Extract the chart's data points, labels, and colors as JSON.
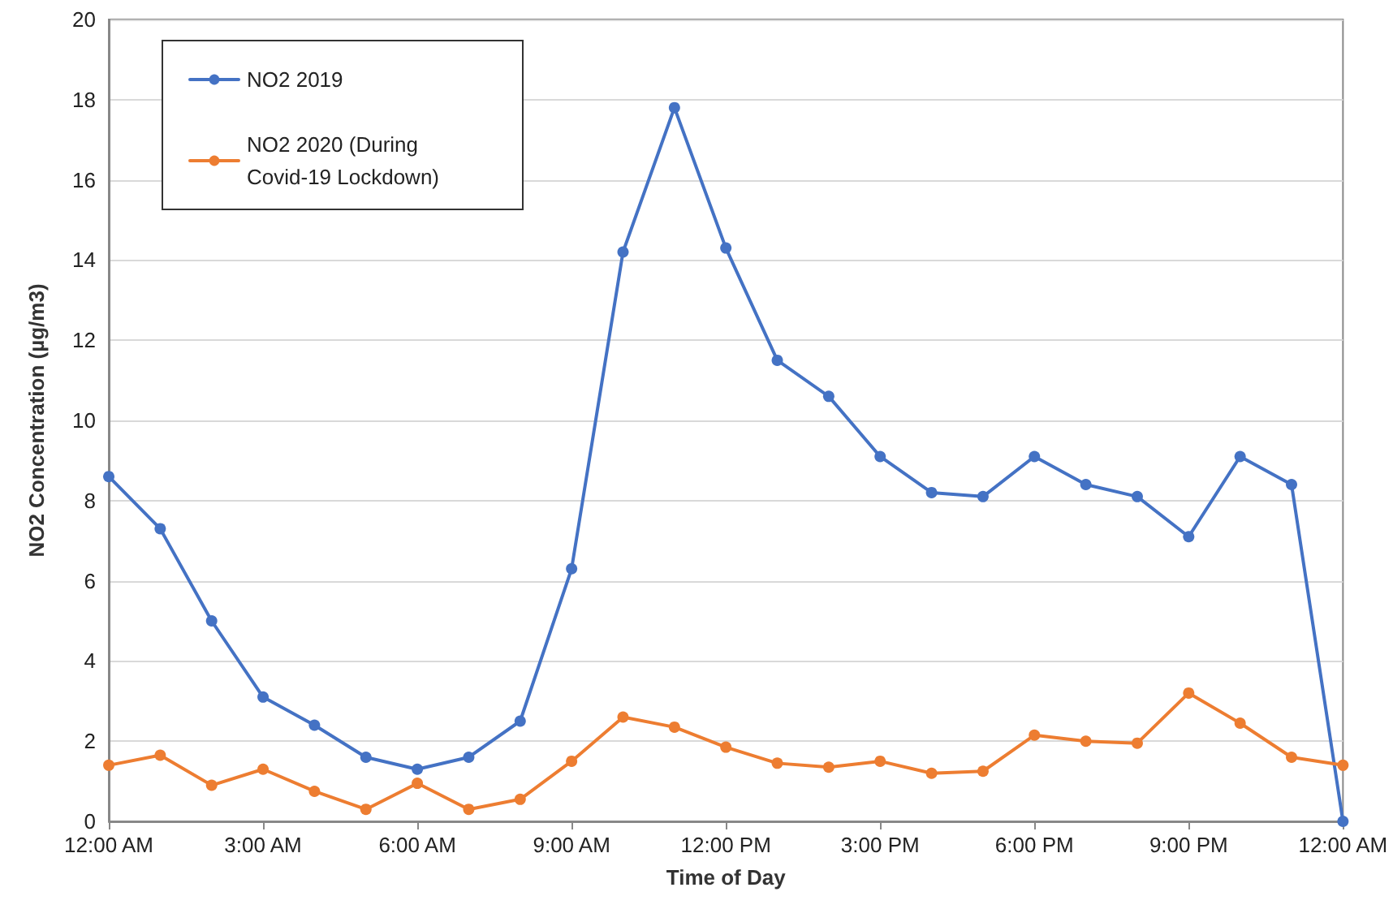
{
  "chart_data": {
    "type": "line",
    "xlabel": "Time of Day",
    "ylabel": "NO2 Concentration (µg/m3)",
    "x": [
      0,
      1,
      2,
      3,
      4,
      5,
      6,
      7,
      8,
      9,
      10,
      11,
      12,
      13,
      14,
      15,
      16,
      17,
      18,
      19,
      20,
      21,
      22,
      23,
      24
    ],
    "series": [
      {
        "name": "NO2 2019",
        "color": "#4472c4",
        "values": [
          8.6,
          7.3,
          5.0,
          3.1,
          2.4,
          1.6,
          1.3,
          1.6,
          2.5,
          6.3,
          14.2,
          17.8,
          14.3,
          11.5,
          10.6,
          9.1,
          8.2,
          8.1,
          9.1,
          8.4,
          8.1,
          7.1,
          9.1,
          8.4,
          0
        ]
      },
      {
        "name": "NO2 2020 (During Covid-19 Lockdown)",
        "color": "#ed7d31",
        "values": [
          1.4,
          1.65,
          0.9,
          1.3,
          0.75,
          0.3,
          0.95,
          0.3,
          0.55,
          1.5,
          2.6,
          2.35,
          1.85,
          1.45,
          1.35,
          1.5,
          1.2,
          1.25,
          2.15,
          2.0,
          1.95,
          3.2,
          2.45,
          1.6,
          1.4
        ]
      }
    ],
    "xlim": [
      0,
      24
    ],
    "xticks": [
      {
        "value": 0,
        "label": "12:00 AM"
      },
      {
        "value": 3,
        "label": "3:00 AM"
      },
      {
        "value": 6,
        "label": "6:00 AM"
      },
      {
        "value": 9,
        "label": "9:00 AM"
      },
      {
        "value": 12,
        "label": "12:00 PM"
      },
      {
        "value": 15,
        "label": "3:00 PM"
      },
      {
        "value": 18,
        "label": "6:00 PM"
      },
      {
        "value": 21,
        "label": "9:00 PM"
      },
      {
        "value": 24,
        "label": "12:00 AM"
      }
    ],
    "ylim": [
      0,
      20
    ],
    "yticks": [
      0,
      2,
      4,
      6,
      8,
      10,
      12,
      14,
      16,
      18,
      20
    ],
    "grid": "y",
    "legend": "top left",
    "marker": "circle",
    "line_style": "solid"
  }
}
